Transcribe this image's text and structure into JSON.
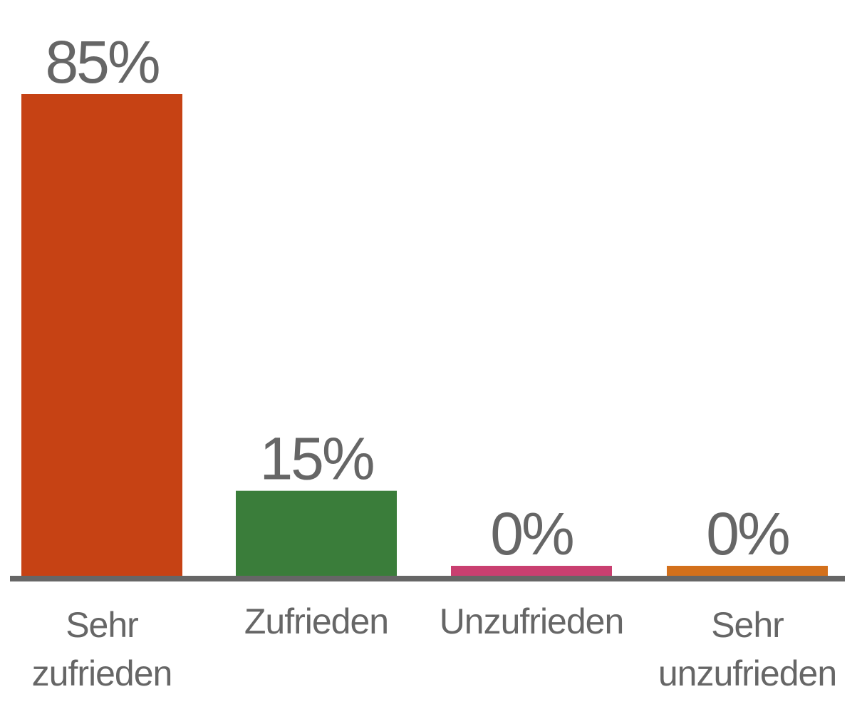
{
  "chart_data": {
    "type": "bar",
    "categories": [
      [
        "Sehr",
        "zufrieden"
      ],
      [
        "Zufrieden"
      ],
      [
        "Unzufrieden"
      ],
      [
        "Sehr",
        "unzufrieden"
      ]
    ],
    "values": [
      85,
      15,
      0,
      0
    ],
    "value_labels": [
      "85%",
      "15%",
      "0%",
      "0%"
    ],
    "colors": [
      "#c64214",
      "#3a7d3a",
      "#c93f70",
      "#d3701b"
    ],
    "axis_color": "#666666",
    "ylim": [
      0,
      85
    ],
    "grid": false,
    "legend": "none"
  }
}
